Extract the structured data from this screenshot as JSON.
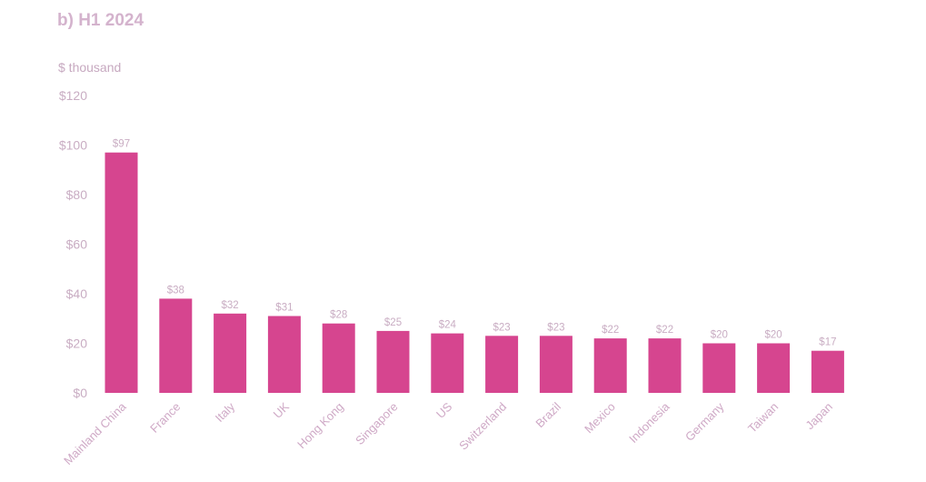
{
  "chart_data": {
    "type": "bar",
    "title": "b) H1 2024",
    "ylabel": "$ thousand",
    "xlabel": "",
    "categories": [
      "Mainland China",
      "France",
      "Italy",
      "UK",
      "Hong Kong",
      "Singapore",
      "US",
      "Switzerland",
      "Brazil",
      "Mexico",
      "Indonesia",
      "Germany",
      "Taiwan",
      "Japan"
    ],
    "values": [
      97,
      38,
      32,
      31,
      28,
      25,
      24,
      23,
      23,
      22,
      22,
      20,
      20,
      17
    ],
    "value_labels": [
      "$97",
      "$38",
      "$32",
      "$31",
      "$28",
      "$25",
      "$24",
      "$23",
      "$23",
      "$22",
      "$22",
      "$20",
      "$20",
      "$17"
    ],
    "ylim": [
      0,
      120
    ],
    "yticks": [
      0,
      20,
      40,
      60,
      80,
      100,
      120
    ],
    "ytick_labels": [
      "$0",
      "$20",
      "$40",
      "$60",
      "$80",
      "$100",
      "$120"
    ],
    "grid": false,
    "legend": "none",
    "bar_color": "#d6458f"
  }
}
